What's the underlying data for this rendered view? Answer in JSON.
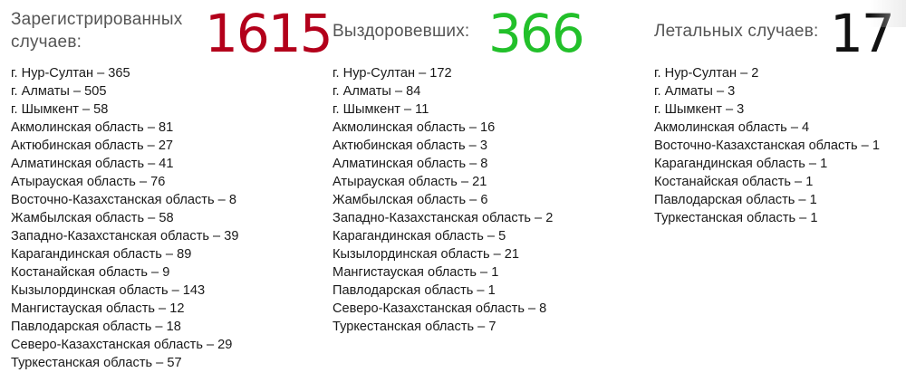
{
  "registered": {
    "label": "Зарегистрированных случаев:",
    "count": "1615",
    "color": "#b3001b",
    "items": [
      "г. Нур-Султан – 365",
      "г. Алматы – 505",
      "г. Шымкент – 58",
      "Акмолинская область – 81",
      "Актюбинская область – 27",
      "Алматинская область – 41",
      "Атырауская область – 76",
      "Восточно-Казахстанская область – 8",
      "Жамбылская область – 58",
      "Западно-Казахстанская область – 39",
      "Карагандинская область – 89",
      "Костанайская область – 9",
      "Кызылординская область – 143",
      "Мангистауская область – 12",
      "Павлодарская область – 18",
      "Северо-Казахстанская область – 29",
      "Туркестанская область – 57"
    ]
  },
  "recovered": {
    "label": "Выздоровевших:",
    "count": "366",
    "color": "#22c02a",
    "items": [
      "г. Нур-Султан – 172",
      "г. Алматы – 84",
      "г. Шымкент – 11",
      "Акмолинская область – 16",
      "Актюбинская область – 3",
      "Алматинская область – 8",
      "Атырауская область – 21",
      "Жамбылская область – 6",
      "Западно-Казахстанская область – 2",
      "Карагандинская область – 5",
      "Кызылординская область – 21",
      "Мангистауская область – 1",
      "Павлодарская область – 1",
      "Северо-Казахстанская область – 8",
      "Туркестанская область – 7"
    ]
  },
  "deaths": {
    "label": "Летальных случаев:",
    "count": "17",
    "color": "#111111",
    "items": [
      "г. Нур-Султан – 2",
      "г. Алматы – 3",
      "г. Шымкент – 3",
      "Акмолинская область – 4",
      "Восточно-Казахстанская область – 1",
      "Карагандинская область – 1",
      "Костанайская область – 1",
      "Павлодарская область – 1",
      "Туркестанская область – 1"
    ]
  }
}
